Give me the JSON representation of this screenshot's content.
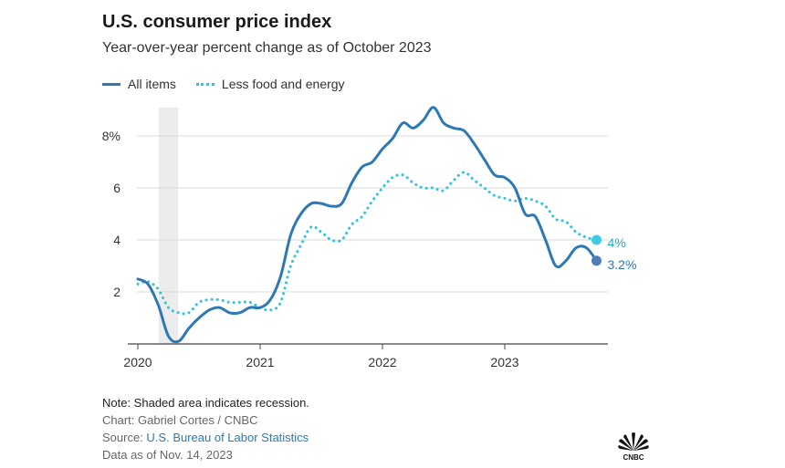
{
  "chart_data": {
    "type": "line",
    "title": "U.S. consumer price index",
    "subtitle": "Year-over-year percent change as of October 2023",
    "xlabel": "",
    "ylabel": "",
    "x_ticks": [
      "2020",
      "2021",
      "2022",
      "2023"
    ],
    "y_ticks": [
      "2",
      "4",
      "6",
      "8%"
    ],
    "y_tick_values": [
      2,
      4,
      6,
      8
    ],
    "ylim": [
      0,
      9.2
    ],
    "xlim": [
      2020.0,
      2023.9
    ],
    "recession": {
      "start": 2020.17,
      "end": 2020.33
    },
    "series": [
      {
        "name": "All items",
        "color": "#2c79b5",
        "style": "solid",
        "end_label": "3.2%",
        "x": [
          2020.0,
          2020.083,
          2020.167,
          2020.25,
          2020.333,
          2020.417,
          2020.5,
          2020.583,
          2020.667,
          2020.75,
          2020.833,
          2020.917,
          2021.0,
          2021.083,
          2021.167,
          2021.25,
          2021.333,
          2021.417,
          2021.5,
          2021.583,
          2021.667,
          2021.75,
          2021.833,
          2021.917,
          2022.0,
          2022.083,
          2022.167,
          2022.25,
          2022.333,
          2022.417,
          2022.5,
          2022.583,
          2022.667,
          2022.75,
          2022.833,
          2022.917,
          2023.0,
          2023.083,
          2023.167,
          2023.25,
          2023.333,
          2023.417,
          2023.5,
          2023.583,
          2023.667,
          2023.75
        ],
        "values": [
          2.5,
          2.3,
          1.5,
          0.3,
          0.1,
          0.6,
          1.0,
          1.3,
          1.4,
          1.2,
          1.2,
          1.4,
          1.4,
          1.7,
          2.6,
          4.2,
          5.0,
          5.4,
          5.4,
          5.3,
          5.4,
          6.2,
          6.8,
          7.0,
          7.5,
          7.9,
          8.5,
          8.3,
          8.6,
          9.1,
          8.5,
          8.3,
          8.2,
          7.7,
          7.1,
          6.5,
          6.4,
          6.0,
          5.0,
          4.9,
          4.0,
          3.0,
          3.2,
          3.7,
          3.7,
          3.2
        ]
      },
      {
        "name": "Less food and energy",
        "color": "#2ec4dd",
        "style": "dotted",
        "end_label": "4%",
        "x": [
          2020.0,
          2020.083,
          2020.167,
          2020.25,
          2020.333,
          2020.417,
          2020.5,
          2020.583,
          2020.667,
          2020.75,
          2020.833,
          2020.917,
          2021.0,
          2021.083,
          2021.167,
          2021.25,
          2021.333,
          2021.417,
          2021.5,
          2021.583,
          2021.667,
          2021.75,
          2021.833,
          2021.917,
          2022.0,
          2022.083,
          2022.167,
          2022.25,
          2022.333,
          2022.417,
          2022.5,
          2022.583,
          2022.667,
          2022.75,
          2022.833,
          2022.917,
          2023.0,
          2023.083,
          2023.167,
          2023.25,
          2023.333,
          2023.417,
          2023.5,
          2023.583,
          2023.667,
          2023.75
        ],
        "values": [
          2.3,
          2.4,
          2.1,
          1.4,
          1.2,
          1.2,
          1.6,
          1.7,
          1.7,
          1.6,
          1.6,
          1.6,
          1.4,
          1.3,
          1.6,
          3.0,
          3.8,
          4.5,
          4.3,
          4.0,
          4.0,
          4.6,
          4.9,
          5.5,
          6.0,
          6.4,
          6.5,
          6.2,
          6.0,
          6.0,
          5.9,
          6.3,
          6.6,
          6.3,
          6.0,
          5.7,
          5.6,
          5.5,
          5.6,
          5.5,
          5.3,
          4.8,
          4.7,
          4.3,
          4.1,
          4.0
        ]
      }
    ]
  },
  "legend": {
    "all_items": "All items",
    "core": "Less food and energy"
  },
  "notes": {
    "note": "Note: Shaded area indicates recession.",
    "chart_credit": "Chart: Gabriel Cortes / CNBC",
    "source_prefix": "Source: ",
    "source_link": "U.S. Bureau of Labor Statistics",
    "data_as_of": "Data as of Nov. 14, 2023"
  },
  "logo": {
    "text": "CNBC"
  }
}
